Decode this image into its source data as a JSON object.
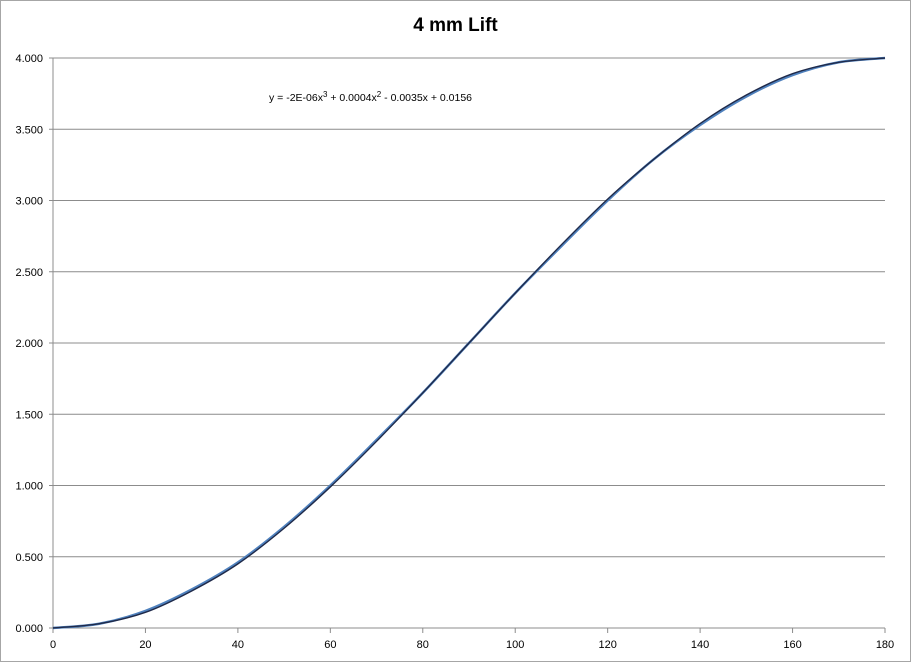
{
  "chart_data": {
    "type": "line",
    "title": "4 mm Lift",
    "xlabel": "",
    "ylabel": "",
    "xlim": [
      0,
      180
    ],
    "ylim": [
      0,
      4
    ],
    "x_ticks": [
      0,
      20,
      40,
      60,
      80,
      100,
      120,
      140,
      160,
      180
    ],
    "x_tick_labels": [
      "0",
      "20",
      "40",
      "60",
      "80",
      "100",
      "120",
      "140",
      "160",
      "180"
    ],
    "y_ticks": [
      0,
      0.5,
      1,
      1.5,
      2,
      2.5,
      3,
      3.5,
      4
    ],
    "y_tick_labels": [
      "0.000",
      "0.500",
      "1.000",
      "1.500",
      "2.000",
      "2.500",
      "3.000",
      "3.500",
      "4.000"
    ],
    "grid": "horizontal",
    "trendline_equation": "y = -2E-06x³ + 0.0004x² - 0.0035x + 0.0156",
    "series": [
      {
        "color": "#4f81bd",
        "x": [
          0,
          10,
          20,
          30,
          40,
          50,
          60,
          70,
          80,
          90,
          100,
          110,
          120,
          130,
          140,
          150,
          160,
          170,
          180
        ],
        "y": [
          0.0,
          0.03,
          0.12,
          0.27,
          0.46,
          0.71,
          1.0,
          1.32,
          1.65,
          2.0,
          2.35,
          2.68,
          3.0,
          3.29,
          3.53,
          3.73,
          3.88,
          3.97,
          4.0
        ]
      },
      {
        "color": "#1f2a4a",
        "x": [
          0,
          10,
          20,
          30,
          40,
          50,
          60,
          70,
          80,
          90,
          100,
          110,
          120,
          130,
          140,
          150,
          160,
          170,
          180
        ],
        "y": [
          0.0,
          0.03,
          0.11,
          0.26,
          0.45,
          0.7,
          0.99,
          1.31,
          1.65,
          2.0,
          2.35,
          2.69,
          3.01,
          3.29,
          3.54,
          3.74,
          3.89,
          3.97,
          4.0
        ]
      }
    ]
  }
}
